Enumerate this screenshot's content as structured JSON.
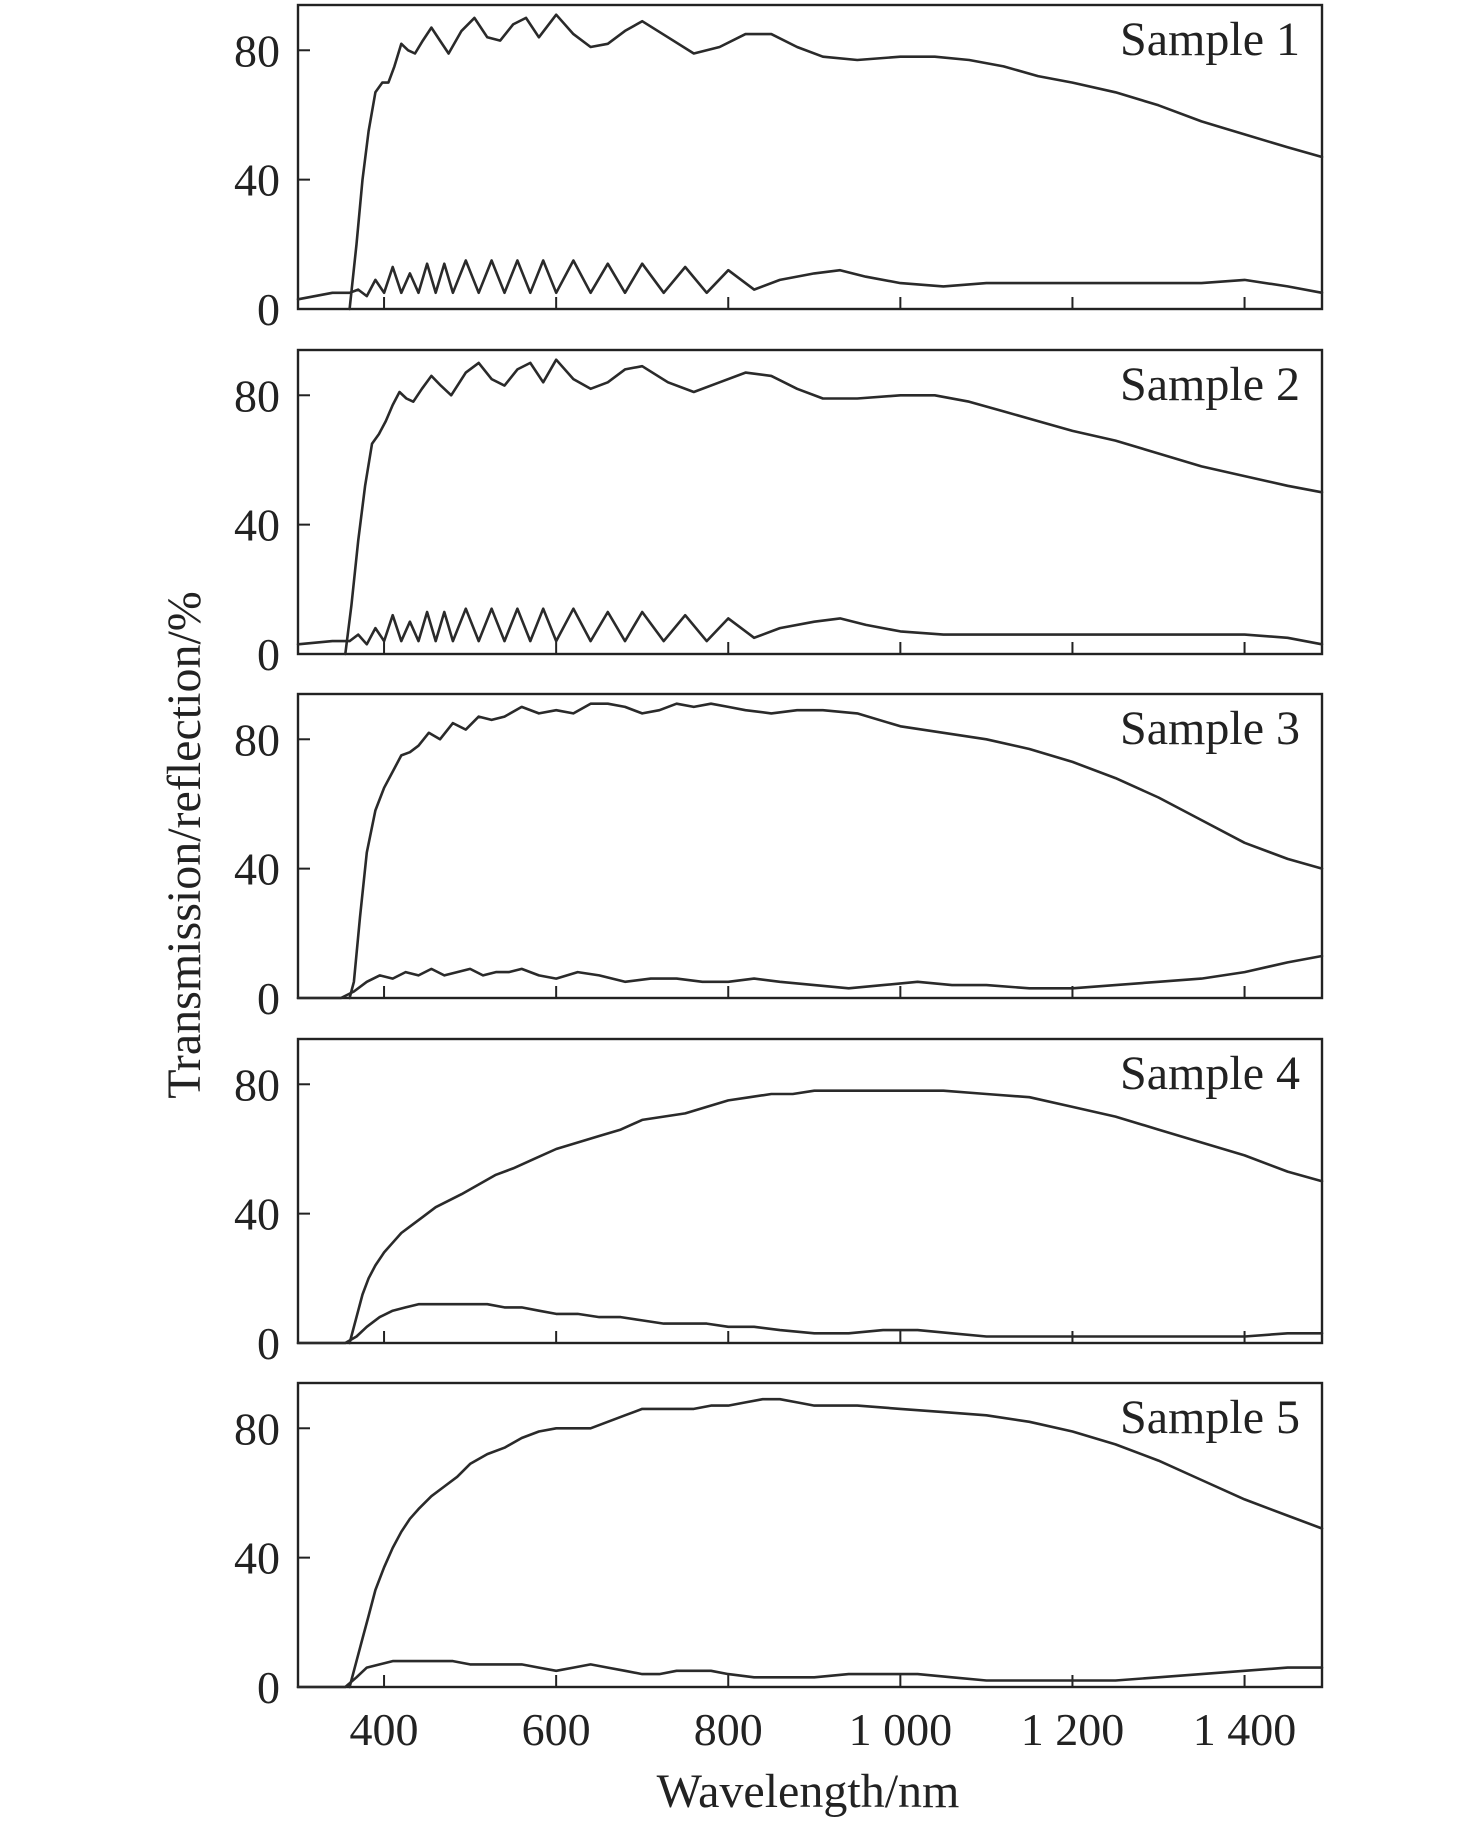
{
  "chart_data": {
    "type": "line",
    "xlabel": "Wavelength/nm",
    "ylabel": "Transmission/reflection/%",
    "xlim": [
      300,
      1490
    ],
    "ylim": [
      0,
      94
    ],
    "xticks": [
      400,
      600,
      800,
      1000,
      1200,
      1400
    ],
    "xtick_labels": [
      "400",
      "600",
      "800",
      "1 000",
      "1 200",
      "1 400"
    ],
    "yticks": [
      0,
      40,
      80
    ],
    "ytick_labels": [
      "0",
      "40",
      "80"
    ],
    "legend": "none",
    "grid": false,
    "line_color": "#2a2a2a",
    "panels": [
      {
        "label": "Sample 1",
        "series": [
          {
            "x": [
              360,
              368,
              375,
              382,
              390,
              398,
              405,
              412,
              420,
              428,
              436,
              445,
              455,
              465,
              475,
              490,
              505,
              520,
              535,
              550,
              565,
              580,
              600,
              620,
              640,
              660,
              680,
              700,
              730,
              760,
              790,
              820,
              850,
              880,
              910,
              950,
              1000,
              1040,
              1080,
              1120,
              1160,
              1200,
              1250,
              1300,
              1350,
              1400,
              1450,
              1490
            ],
            "y": [
              0,
              20,
              40,
              55,
              67,
              70,
              70,
              75,
              82,
              80,
              79,
              83,
              87,
              83,
              79,
              86,
              90,
              84,
              83,
              88,
              90,
              84,
              91,
              85,
              81,
              82,
              86,
              89,
              84,
              79,
              81,
              85,
              85,
              81,
              78,
              77,
              78,
              78,
              77,
              75,
              72,
              70,
              67,
              63,
              58,
              54,
              50,
              47
            ]
          },
          {
            "x": [
              300,
              340,
              360,
              370,
              380,
              390,
              400,
              410,
              420,
              430,
              440,
              450,
              460,
              470,
              480,
              495,
              510,
              525,
              540,
              555,
              570,
              585,
              600,
              620,
              640,
              660,
              680,
              700,
              725,
              750,
              775,
              800,
              830,
              860,
              900,
              930,
              960,
              1000,
              1050,
              1100,
              1150,
              1200,
              1250,
              1300,
              1350,
              1400,
              1450,
              1490
            ],
            "y": [
              3,
              5,
              5,
              6,
              4,
              9,
              5,
              13,
              5,
              11,
              5,
              14,
              5,
              14,
              5,
              15,
              5,
              15,
              5,
              15,
              5,
              15,
              5,
              15,
              5,
              14,
              5,
              14,
              5,
              13,
              5,
              12,
              6,
              9,
              11,
              12,
              10,
              8,
              7,
              8,
              8,
              8,
              8,
              8,
              8,
              9,
              7,
              5
            ]
          }
        ]
      },
      {
        "label": "Sample 2",
        "series": [
          {
            "x": [
              355,
              362,
              370,
              378,
              386,
              394,
              402,
              410,
              418,
              426,
              434,
              444,
              455,
              466,
              478,
              495,
              510,
              525,
              540,
              555,
              570,
              585,
              600,
              620,
              640,
              660,
              680,
              700,
              730,
              760,
              790,
              820,
              850,
              880,
              910,
              950,
              1000,
              1040,
              1080,
              1120,
              1160,
              1200,
              1250,
              1300,
              1350,
              1400,
              1450,
              1490
            ],
            "y": [
              0,
              15,
              35,
              52,
              65,
              68,
              72,
              77,
              81,
              79,
              78,
              82,
              86,
              83,
              80,
              87,
              90,
              85,
              83,
              88,
              90,
              84,
              91,
              85,
              82,
              84,
              88,
              89,
              84,
              81,
              84,
              87,
              86,
              82,
              79,
              79,
              80,
              80,
              78,
              75,
              72,
              69,
              66,
              62,
              58,
              55,
              52,
              50
            ]
          },
          {
            "x": [
              300,
              340,
              360,
              370,
              380,
              390,
              400,
              410,
              420,
              430,
              440,
              450,
              460,
              470,
              480,
              495,
              510,
              525,
              540,
              555,
              570,
              585,
              600,
              620,
              640,
              660,
              680,
              700,
              725,
              750,
              775,
              800,
              830,
              860,
              900,
              930,
              960,
              1000,
              1050,
              1100,
              1150,
              1200,
              1250,
              1300,
              1350,
              1400,
              1450,
              1490
            ],
            "y": [
              3,
              4,
              4,
              6,
              3,
              8,
              4,
              12,
              4,
              10,
              4,
              13,
              4,
              13,
              4,
              14,
              4,
              14,
              4,
              14,
              4,
              14,
              4,
              14,
              4,
              13,
              4,
              13,
              4,
              12,
              4,
              11,
              5,
              8,
              10,
              11,
              9,
              7,
              6,
              6,
              6,
              6,
              6,
              6,
              6,
              6,
              5,
              3
            ]
          }
        ]
      },
      {
        "label": "Sample 3",
        "series": [
          {
            "x": [
              360,
              365,
              372,
              380,
              390,
              400,
              410,
              420,
              430,
              440,
              452,
              465,
              480,
              495,
              510,
              525,
              540,
              560,
              580,
              600,
              620,
              640,
              660,
              680,
              700,
              720,
              740,
              760,
              780,
              800,
              820,
              850,
              880,
              910,
              950,
              1000,
              1050,
              1100,
              1150,
              1200,
              1250,
              1300,
              1350,
              1400,
              1450,
              1490
            ],
            "y": [
              0,
              5,
              25,
              45,
              58,
              65,
              70,
              75,
              76,
              78,
              82,
              80,
              85,
              83,
              87,
              86,
              87,
              90,
              88,
              89,
              88,
              91,
              91,
              90,
              88,
              89,
              91,
              90,
              91,
              90,
              89,
              88,
              89,
              89,
              88,
              84,
              82,
              80,
              77,
              73,
              68,
              62,
              55,
              48,
              43,
              40
            ]
          },
          {
            "x": [
              300,
              350,
              365,
              380,
              395,
              410,
              425,
              440,
              455,
              470,
              485,
              500,
              515,
              530,
              545,
              560,
              580,
              600,
              625,
              650,
              680,
              710,
              740,
              770,
              800,
              830,
              860,
              900,
              940,
              980,
              1020,
              1060,
              1100,
              1150,
              1200,
              1250,
              1300,
              1350,
              1400,
              1450,
              1490
            ],
            "y": [
              0,
              0,
              2,
              5,
              7,
              6,
              8,
              7,
              9,
              7,
              8,
              9,
              7,
              8,
              8,
              9,
              7,
              6,
              8,
              7,
              5,
              6,
              6,
              5,
              5,
              6,
              5,
              4,
              3,
              4,
              5,
              4,
              4,
              3,
              3,
              4,
              5,
              6,
              8,
              11,
              13
            ]
          }
        ]
      },
      {
        "label": "Sample 4",
        "series": [
          {
            "x": [
              360,
              368,
              375,
              382,
              390,
              400,
              410,
              420,
              430,
              445,
              460,
              475,
              490,
              510,
              530,
              550,
              575,
              600,
              625,
              650,
              675,
              700,
              725,
              750,
              775,
              800,
              825,
              850,
              875,
              900,
              925,
              950,
              1000,
              1050,
              1100,
              1150,
              1200,
              1250,
              1300,
              1350,
              1400,
              1450,
              1490
            ],
            "y": [
              0,
              8,
              15,
              20,
              24,
              28,
              31,
              34,
              36,
              39,
              42,
              44,
              46,
              49,
              52,
              54,
              57,
              60,
              62,
              64,
              66,
              69,
              70,
              71,
              73,
              75,
              76,
              77,
              77,
              78,
              78,
              78,
              78,
              78,
              77,
              76,
              73,
              70,
              66,
              62,
              58,
              53,
              50
            ]
          },
          {
            "x": [
              300,
              355,
              368,
              380,
              395,
              410,
              425,
              440,
              460,
              480,
              500,
              520,
              540,
              560,
              580,
              600,
              625,
              650,
              675,
              700,
              725,
              750,
              775,
              800,
              830,
              860,
              900,
              940,
              980,
              1020,
              1060,
              1100,
              1150,
              1200,
              1250,
              1300,
              1350,
              1400,
              1450,
              1490
            ],
            "y": [
              0,
              0,
              2,
              5,
              8,
              10,
              11,
              12,
              12,
              12,
              12,
              12,
              11,
              11,
              10,
              9,
              9,
              8,
              8,
              7,
              6,
              6,
              6,
              5,
              5,
              4,
              3,
              3,
              4,
              4,
              3,
              2,
              2,
              2,
              2,
              2,
              2,
              2,
              3,
              3
            ]
          }
        ]
      },
      {
        "label": "Sample 5",
        "series": [
          {
            "x": [
              360,
              368,
              375,
              382,
              390,
              400,
              410,
              420,
              430,
              440,
              455,
              470,
              485,
              500,
              520,
              540,
              560,
              580,
              600,
              620,
              640,
              660,
              680,
              700,
              720,
              740,
              760,
              780,
              800,
              820,
              840,
              860,
              880,
              900,
              925,
              950,
              1000,
              1050,
              1100,
              1150,
              1200,
              1250,
              1300,
              1350,
              1400,
              1450,
              1490
            ],
            "y": [
              0,
              8,
              15,
              22,
              30,
              37,
              43,
              48,
              52,
              55,
              59,
              62,
              65,
              69,
              72,
              74,
              77,
              79,
              80,
              80,
              80,
              82,
              84,
              86,
              86,
              86,
              86,
              87,
              87,
              88,
              89,
              89,
              88,
              87,
              87,
              87,
              86,
              85,
              84,
              82,
              79,
              75,
              70,
              64,
              58,
              53,
              49
            ]
          },
          {
            "x": [
              300,
              355,
              368,
              380,
              395,
              410,
              425,
              440,
              460,
              480,
              500,
              520,
              540,
              560,
              580,
              600,
              620,
              640,
              660,
              680,
              700,
              720,
              740,
              760,
              780,
              800,
              830,
              860,
              900,
              940,
              980,
              1020,
              1060,
              1100,
              1150,
              1200,
              1250,
              1300,
              1350,
              1400,
              1450,
              1490
            ],
            "y": [
              0,
              0,
              3,
              6,
              7,
              8,
              8,
              8,
              8,
              8,
              7,
              7,
              7,
              7,
              6,
              5,
              6,
              7,
              6,
              5,
              4,
              4,
              5,
              5,
              5,
              4,
              3,
              3,
              3,
              4,
              4,
              4,
              3,
              2,
              2,
              2,
              2,
              3,
              4,
              5,
              6,
              6
            ]
          }
        ]
      }
    ]
  }
}
